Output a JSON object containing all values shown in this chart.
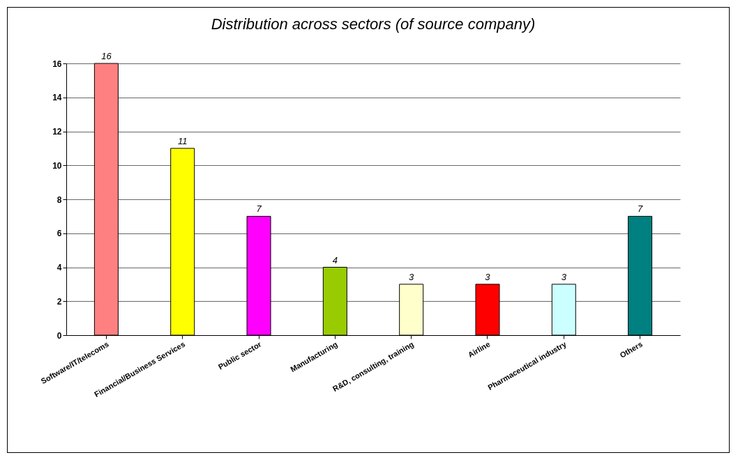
{
  "chart_data": {
    "type": "bar",
    "title": "Distribution across sectors (of source company)",
    "categories": [
      "Software/IT/telecoms",
      "Financial/Business Services",
      "Public sector",
      "Manufacturing",
      "R&D, consulting, training",
      "Airline",
      "Pharmaceutical industry",
      "Others"
    ],
    "values": [
      16,
      11,
      7,
      4,
      3,
      3,
      3,
      7
    ],
    "colors": [
      "#ff8080",
      "#ffff00",
      "#ff00ff",
      "#99cc00",
      "#ffffcc",
      "#ff0000",
      "#ccffff",
      "#008080"
    ],
    "ylim": [
      0,
      16
    ],
    "yticks": [
      0,
      2,
      4,
      6,
      8,
      10,
      12,
      14,
      16
    ],
    "grid": "y",
    "data_labels": true
  }
}
